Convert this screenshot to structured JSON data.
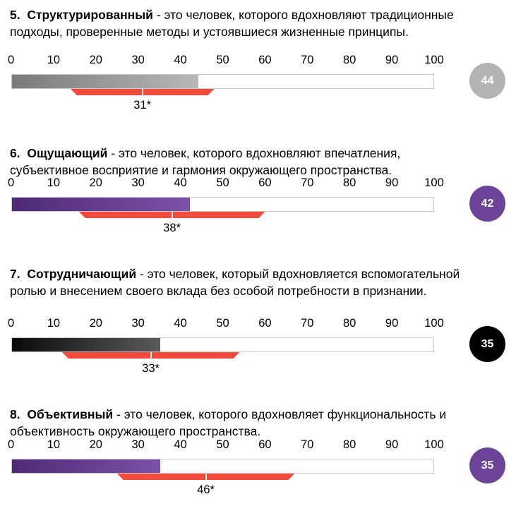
{
  "axis_ticks": [
    "0",
    "10",
    "20",
    "30",
    "40",
    "50",
    "60",
    "70",
    "80",
    "90",
    "100"
  ],
  "sections": [
    {
      "number": "5.",
      "title": "Структурированный",
      "text": " - это человек, которого вдохновляют традиционные подходы, проверенные методы и устоявшиеся жизненные принципы.",
      "score": 44,
      "score_label": "44",
      "norm_low": 14,
      "norm_high": 48,
      "norm_value": 31,
      "norm_label": "31*",
      "fill_from": "#7a7a7a",
      "fill_to": "#b8b8b8",
      "badge_color": "#b3b3b3"
    },
    {
      "number": "6.",
      "title": "Ощущающий",
      "text": " - это человек, которого вдохновляют впечатления, субъективное восприятие и гармония окружающего пространства.",
      "score": 42,
      "score_label": "42",
      "norm_low": 16,
      "norm_high": 60,
      "norm_value": 38,
      "norm_label": "38*",
      "fill_from": "#4e2a74",
      "fill_to": "#7b52a8",
      "badge_color": "#6b4497"
    },
    {
      "number": "7.",
      "title": "Сотрудничающий",
      "text": " - это человек, который вдохновляется вспомогательной ролью и внесением своего вклада без особой потребности в признании.",
      "score": 35,
      "score_label": "35",
      "norm_low": 12,
      "norm_high": 54,
      "norm_value": 33,
      "norm_label": "33*",
      "fill_from": "#0a0a0a",
      "fill_to": "#5a5a5a",
      "badge_color": "#000000"
    },
    {
      "number": "8.",
      "title": "Объективный",
      "text": " - это человек, которого вдохновляет функциональность и объективность окружающего пространства.",
      "score": 35,
      "score_label": "35",
      "norm_low": 25,
      "norm_high": 67,
      "norm_value": 46,
      "norm_label": "46*",
      "fill_from": "#4e2a74",
      "fill_to": "#7b52a8",
      "badge_color": "#6b4497"
    }
  ],
  "chart_data": [
    {
      "type": "bar",
      "categories": [
        "Структурированный"
      ],
      "values": [
        44
      ],
      "norm_range": [
        14,
        48
      ],
      "norm_value": 31,
      "xlim": [
        0,
        100
      ],
      "ticks": [
        0,
        10,
        20,
        30,
        40,
        50,
        60,
        70,
        80,
        90,
        100
      ]
    },
    {
      "type": "bar",
      "categories": [
        "Ощущающий"
      ],
      "values": [
        42
      ],
      "norm_range": [
        16,
        60
      ],
      "norm_value": 38,
      "xlim": [
        0,
        100
      ],
      "ticks": [
        0,
        10,
        20,
        30,
        40,
        50,
        60,
        70,
        80,
        90,
        100
      ]
    },
    {
      "type": "bar",
      "categories": [
        "Сотрудничающий"
      ],
      "values": [
        35
      ],
      "norm_range": [
        12,
        54
      ],
      "norm_value": 33,
      "xlim": [
        0,
        100
      ],
      "ticks": [
        0,
        10,
        20,
        30,
        40,
        50,
        60,
        70,
        80,
        90,
        100
      ]
    },
    {
      "type": "bar",
      "categories": [
        "Объективный"
      ],
      "values": [
        35
      ],
      "norm_range": [
        25,
        67
      ],
      "norm_value": 46,
      "xlim": [
        0,
        100
      ],
      "ticks": [
        0,
        10,
        20,
        30,
        40,
        50,
        60,
        70,
        80,
        90,
        100
      ]
    }
  ]
}
